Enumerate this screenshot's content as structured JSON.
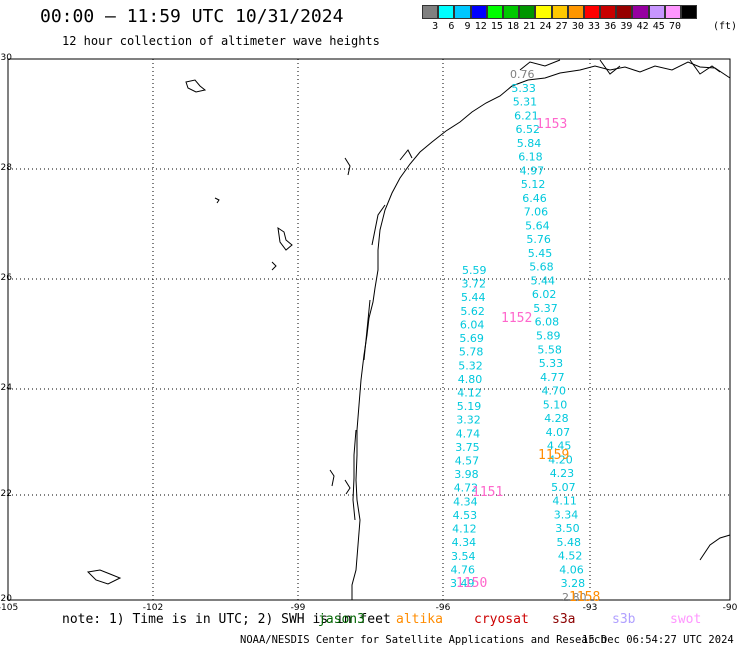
{
  "header": {
    "title": "00:00 – 11:59 UTC 10/31/2024",
    "subtitle": "12 hour collection of altimeter wave heights"
  },
  "colorbar": {
    "unit": "(ft)",
    "swatches": [
      "#808080",
      "#00ffff",
      "#00c8ff",
      "#0000ff",
      "#00ff00",
      "#00c800",
      "#009600",
      "#ffff00",
      "#ffc800",
      "#ff9600",
      "#ff0000",
      "#c80000",
      "#960000",
      "#9600a0",
      "#c896ff",
      "#ff96ff",
      "#000000"
    ],
    "labels": [
      "3",
      "6",
      "9",
      "12",
      "15",
      "18",
      "21",
      "24",
      "27",
      "30",
      "33",
      "36",
      "39",
      "42",
      "45",
      "70"
    ]
  },
  "axes": {
    "lat_labels": [
      "30",
      "28",
      "26",
      "24",
      "22",
      "20"
    ],
    "lon_labels": [
      "-105",
      "-102",
      "-99",
      "-96",
      "-93",
      "-90"
    ]
  },
  "tracks": {
    "track_a": {
      "pass_label": "1153",
      "values": [
        "0.76",
        "5.33",
        "5.31",
        "6.21",
        "6.52",
        "5.84",
        "6.18",
        "4.97",
        "5.12",
        "6.46",
        "7.06",
        "5.64",
        "5.76",
        "5.45",
        "5.68",
        "5.44",
        "6.02",
        "5.37",
        "6.08",
        "5.89",
        "5.58",
        "5.33",
        "4.77",
        "4.70",
        "5.10",
        "4.28",
        "4.07",
        "4.45",
        "4.20",
        "4.23",
        "5.07",
        "4.11",
        "3.34",
        "3.50",
        "5.48",
        "4.52",
        "4.06",
        "3.28",
        "2.80"
      ]
    },
    "track_b": {
      "pass_label": "1152",
      "values": [
        "5.59",
        "3.72",
        "5.44",
        "5.62",
        "6.04",
        "5.69",
        "5.78",
        "5.32",
        "4.80",
        "4.12",
        "5.19",
        "3.32",
        "4.74",
        "3.75",
        "4.57",
        "3.98",
        "4.72",
        "4.34",
        "4.53",
        "4.12",
        "4.34",
        "3.54",
        "4.76",
        "3.49"
      ]
    },
    "label_1159": "1159",
    "label_1151": "1151",
    "label_1150": "1150",
    "label_1158": "1158"
  },
  "footer": {
    "note": "note: 1) Time is in UTC; 2) SWH is in feet",
    "missions": [
      {
        "name": "jason3",
        "color": "#006400"
      },
      {
        "name": "altika",
        "color": "#ff8c00"
      },
      {
        "name": "cryosat",
        "color": "#cc0000"
      },
      {
        "name": "s3a",
        "color": "#8b0000"
      },
      {
        "name": "s3b",
        "color": "#b0a0ff"
      },
      {
        "name": "swot",
        "color": "#ff96ff"
      }
    ],
    "credit": "NOAA/NESDIS Center for Satellite Applications and Research",
    "timestamp": "15 Dec 06:54:27 UTC 2024"
  },
  "colors": {
    "track": "#00c8dc",
    "pass_1153": "#ff66cc",
    "pass_1159": "#ff8c00",
    "low": "#808080"
  }
}
